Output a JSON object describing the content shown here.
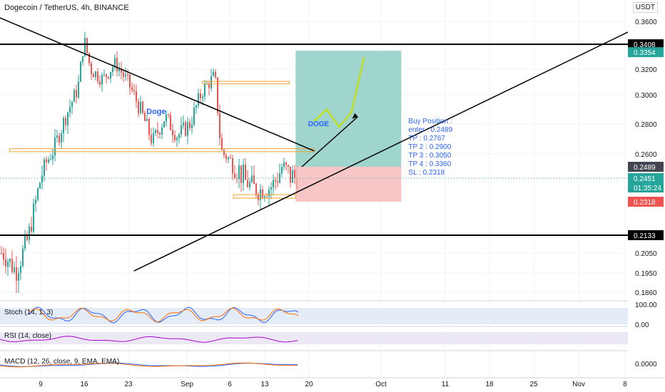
{
  "header": {
    "title": "Dogecoin / TetherUS, 4h, BINANCE",
    "currency": "USDT"
  },
  "colors": {
    "candle_up": "#26a69a",
    "candle_down": "#ef5350",
    "trend_line": "#000000",
    "zone_border": "#f0a030",
    "tp_zone": "#7fc7bc",
    "sl_zone": "#f5b3b3",
    "current_price": "#26a69a",
    "entry_price": "#555555",
    "sl_price": "#ef5350",
    "annotation_text": "#2962ff",
    "forecast_curve": "#c5e000",
    "stoch_k": "#2962ff",
    "stoch_d": "#ff6d00",
    "rsi": "#b000d0",
    "macd": "#2962ff",
    "signal": "#ff6d00"
  },
  "annotations": {
    "label_doge_left": "Doge",
    "label_doge_right": "DOGE",
    "buy_position": [
      "Buy Position :",
      "enter : 0.2489",
      "TP    : 0.2767",
      "TP 2 : 0.2900",
      "TP 3 : 0.3050",
      "TP 4 : 0.3360",
      "SL    : 0.2318"
    ]
  },
  "indicators": {
    "stoch": {
      "label": "Stoch (14, 1, 3)",
      "ticks": [
        "100.00",
        "0.00"
      ]
    },
    "rsi": {
      "label": "RSI (14, close)"
    },
    "macd": {
      "label": "MACD (12, 26, close, 9, EMA, EMA)",
      "ticks": [
        "0.0000"
      ]
    }
  },
  "price_axis": {
    "ticks": [
      "0.3600",
      "0.3200",
      "0.3000",
      "0.2800",
      "0.2600",
      "0.2050",
      "0.1950",
      "0.1860"
    ],
    "badges": [
      {
        "label": "0.3408",
        "kind": "line"
      },
      {
        "label": "0.3354",
        "kind": "tp"
      },
      {
        "label": "0.2489",
        "kind": "entry"
      },
      {
        "label": "0.2451",
        "kind": "current"
      },
      {
        "label": "01:35:24",
        "kind": "current"
      },
      {
        "label": "0.2318",
        "kind": "sl"
      },
      {
        "label": "0.2133",
        "kind": "line"
      }
    ]
  },
  "time_axis": {
    "ticks": [
      "9",
      "16",
      "23",
      "Sep",
      "6",
      "13",
      "20",
      "Oct",
      "11",
      "18",
      "25",
      "Nov",
      "8"
    ]
  },
  "chart_data": {
    "type": "candlestick",
    "symbol": "Dogecoin / TetherUS",
    "interval": "4h",
    "exchange": "BINANCE",
    "x_ticks": [
      "9",
      "16",
      "23",
      "Sep",
      "6",
      "13",
      "20",
      "Oct",
      "11",
      "18",
      "25",
      "Nov",
      "8"
    ],
    "y_ticks": [
      0.36,
      0.32,
      0.3,
      0.28,
      0.26,
      0.205,
      0.195,
      0.186
    ],
    "ylim": [
      0.18,
      0.365
    ],
    "horizontal_levels": [
      0.3408,
      0.2133
    ],
    "trade": {
      "entry": 0.2489,
      "current": 0.2451,
      "take_profit_zone_top": 0.3354,
      "stop_loss": 0.2318,
      "countdown": "01:35:24"
    },
    "price_path": [
      {
        "date": "Aug 3",
        "price": 0.205
      },
      {
        "date": "Aug 5",
        "price": 0.196
      },
      {
        "date": "Aug 7",
        "price": 0.212
      },
      {
        "date": "Aug 9",
        "price": 0.245
      },
      {
        "date": "Aug 11",
        "price": 0.262
      },
      {
        "date": "Aug 13",
        "price": 0.285
      },
      {
        "date": "Aug 15",
        "price": 0.305
      },
      {
        "date": "Aug 16",
        "price": 0.345
      },
      {
        "date": "Aug 17",
        "price": 0.32
      },
      {
        "date": "Aug 19",
        "price": 0.312
      },
      {
        "date": "Aug 21",
        "price": 0.325
      },
      {
        "date": "Aug 23",
        "price": 0.31
      },
      {
        "date": "Aug 25",
        "price": 0.29
      },
      {
        "date": "Aug 27",
        "price": 0.268
      },
      {
        "date": "Aug 29",
        "price": 0.285
      },
      {
        "date": "Aug 31",
        "price": 0.272
      },
      {
        "date": "Sep 2",
        "price": 0.28
      },
      {
        "date": "Sep 4",
        "price": 0.303
      },
      {
        "date": "Sep 6",
        "price": 0.315
      },
      {
        "date": "Sep 7",
        "price": 0.262
      },
      {
        "date": "Sep 9",
        "price": 0.252
      },
      {
        "date": "Sep 11",
        "price": 0.243
      },
      {
        "date": "Sep 13",
        "price": 0.238
      },
      {
        "date": "Sep 15",
        "price": 0.24
      },
      {
        "date": "Sep 17",
        "price": 0.25
      },
      {
        "date": "Sep 18",
        "price": 0.2451
      }
    ],
    "forecast_path": [
      {
        "date": "Sep 22",
        "price": 0.282
      },
      {
        "date": "Sep 24",
        "price": 0.29
      },
      {
        "date": "Sep 26",
        "price": 0.278
      },
      {
        "date": "Sep 28",
        "price": 0.288
      },
      {
        "date": "Sep 30",
        "price": 0.33
      }
    ],
    "trend_lines": [
      {
        "from": {
          "date": "Jul 28",
          "price": 0.375
        },
        "to": {
          "date": "Sep 22",
          "price": 0.262
        }
      },
      {
        "from": {
          "date": "Aug 24",
          "price": 0.196
        },
        "to": {
          "date": "Nov 17",
          "price": 0.365
        }
      }
    ],
    "zones": [
      {
        "label": "upper box",
        "from": "Sep 4",
        "to": "Sep 18",
        "price_low": 0.3085,
        "price_high": 0.3105
      },
      {
        "label": "mid box",
        "from": "Aug 4",
        "to": "Sep 22",
        "price_low": 0.2615,
        "price_high": 0.2635
      },
      {
        "label": "lower box",
        "from": "Sep 9",
        "to": "Sep 19",
        "price_low": 0.2338,
        "price_high": 0.2358
      }
    ]
  }
}
